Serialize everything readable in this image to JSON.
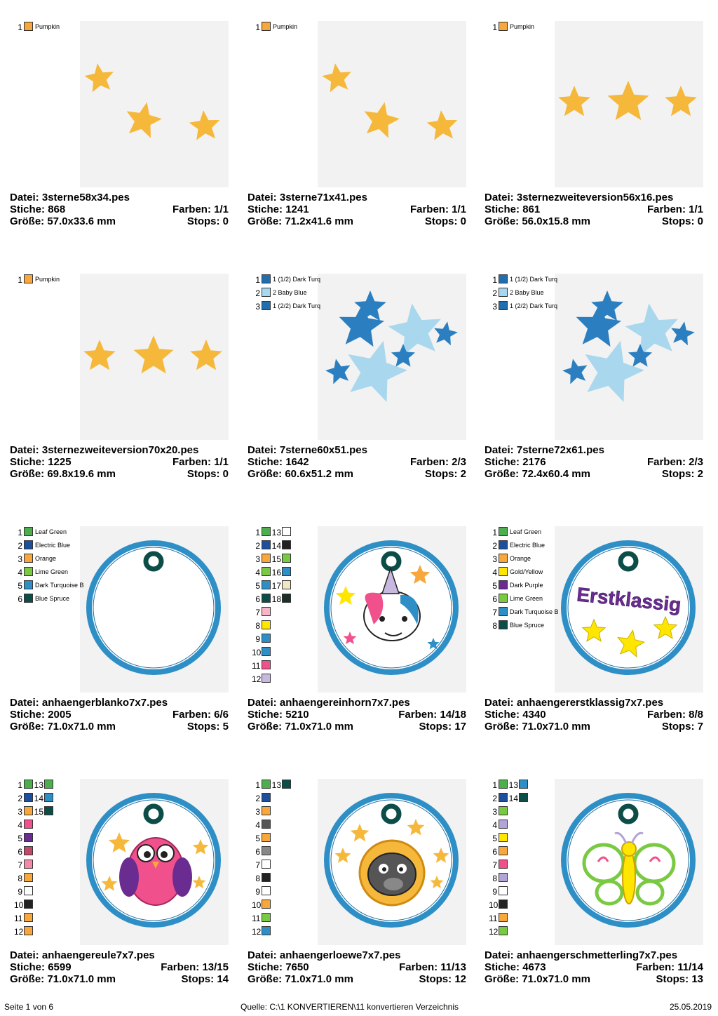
{
  "labels": {
    "file": "Datei:",
    "stitches": "Stiche:",
    "size": "Größe:",
    "colors": "Farben:",
    "stops": "Stops:"
  },
  "cards": [
    {
      "file": "3sterne58x34.pes",
      "stitches": "868",
      "colors": "1/1",
      "size": "57.0x33.6 mm",
      "stops": "0",
      "motif": "stars3a",
      "legend": [
        {
          "n": "1",
          "color": "#f7a73b",
          "name": "Pumpkin"
        }
      ]
    },
    {
      "file": "3sterne71x41.pes",
      "stitches": "1241",
      "colors": "1/1",
      "size": "71.2x41.6 mm",
      "stops": "0",
      "motif": "stars3a",
      "legend": [
        {
          "n": "1",
          "color": "#f7a73b",
          "name": "Pumpkin"
        }
      ]
    },
    {
      "file": "3sternezweiteversion56x16.pes",
      "stitches": "861",
      "colors": "1/1",
      "size": "56.0x15.8 mm",
      "stops": "0",
      "motif": "stars3b",
      "legend": [
        {
          "n": "1",
          "color": "#f7a73b",
          "name": "Pumpkin"
        }
      ]
    },
    {
      "file": "3sternezweiteversion70x20.pes",
      "stitches": "1225",
      "colors": "1/1",
      "size": "69.8x19.6 mm",
      "stops": "0",
      "motif": "stars3c",
      "legend": [
        {
          "n": "1",
          "color": "#f7a73b",
          "name": "Pumpkin"
        }
      ]
    },
    {
      "file": "7sterne60x51.pes",
      "stitches": "1642",
      "colors": "2/3",
      "size": "60.6x51.2 mm",
      "stops": "2",
      "motif": "stars7",
      "legend": [
        {
          "n": "1",
          "color": "#1f6fb0",
          "name": "1 (1/2) Dark Turq"
        },
        {
          "n": "2",
          "color": "#a9d8ee",
          "name": "2 Baby Blue"
        },
        {
          "n": "3",
          "color": "#1f6fb0",
          "name": "1 (2/2) Dark Turq"
        }
      ]
    },
    {
      "file": "7sterne72x61.pes",
      "stitches": "2176",
      "colors": "2/3",
      "size": "72.4x60.4 mm",
      "stops": "2",
      "motif": "stars7",
      "legend": [
        {
          "n": "1",
          "color": "#1f6fb0",
          "name": "1 (1/2) Dark Turq"
        },
        {
          "n": "2",
          "color": "#a9d8ee",
          "name": "2 Baby Blue"
        },
        {
          "n": "3",
          "color": "#1f6fb0",
          "name": "1 (2/2) Dark Turq"
        }
      ]
    },
    {
      "file": "anhaengerblanko7x7.pes",
      "stitches": "2005",
      "colors": "6/6",
      "size": "71.0x71.0 mm",
      "stops": "5",
      "motif": "tag-blank",
      "legend": [
        {
          "n": "1",
          "color": "#4cae4c",
          "name": "Leaf Green"
        },
        {
          "n": "2",
          "color": "#1e4f9c",
          "name": "Electric Blue"
        },
        {
          "n": "3",
          "color": "#f7a73b",
          "name": "Orange"
        },
        {
          "n": "4",
          "color": "#7ac943",
          "name": "Lime Green"
        },
        {
          "n": "5",
          "color": "#2d8fc6",
          "name": "Dark Turquoise B"
        },
        {
          "n": "6",
          "color": "#0d4d47",
          "name": "Blue Spruce"
        }
      ]
    },
    {
      "file": "anhaengereinhorn7x7.pes",
      "stitches": "5210",
      "colors": "14/18",
      "size": "71.0x71.0 mm",
      "stops": "17",
      "motif": "tag-unicorn",
      "legend": [
        {
          "n": "1",
          "color": "#4cae4c",
          "n2": "13",
          "color2": "#ffffff"
        },
        {
          "n": "2",
          "color": "#1e4f9c",
          "n2": "14",
          "color2": "#222222"
        },
        {
          "n": "3",
          "color": "#f7a73b",
          "n2": "15",
          "color2": "#7ac943"
        },
        {
          "n": "4",
          "color": "#7ac943",
          "n2": "16",
          "color2": "#2d8fc6"
        },
        {
          "n": "5",
          "color": "#2d8fc6",
          "n2": "17",
          "color2": "#f2e6c4"
        },
        {
          "n": "6",
          "color": "#0d4d47",
          "n2": "18",
          "color2": "#1a2e2a"
        },
        {
          "n": "7",
          "color": "#f7b6c8"
        },
        {
          "n": "8",
          "color": "#ffe600"
        },
        {
          "n": "9",
          "color": "#2d8fc6"
        },
        {
          "n": "10",
          "color": "#2d8fc6"
        },
        {
          "n": "11",
          "color": "#f0508c"
        },
        {
          "n": "12",
          "color": "#c7b8e0"
        }
      ]
    },
    {
      "file": "anhaengererstklassig7x7.pes",
      "stitches": "4340",
      "colors": "8/8",
      "size": "71.0x71.0 mm",
      "stops": "7",
      "motif": "tag-erstklassig",
      "tagtext": "Erstklassig",
      "legend": [
        {
          "n": "1",
          "color": "#4cae4c",
          "name": "Leaf Green"
        },
        {
          "n": "2",
          "color": "#1e4f9c",
          "name": "Electric Blue"
        },
        {
          "n": "3",
          "color": "#f7a73b",
          "name": "Orange"
        },
        {
          "n": "4",
          "color": "#ffe600",
          "name": "Gold/Yellow"
        },
        {
          "n": "5",
          "color": "#6a2c91",
          "name": "Dark Purple"
        },
        {
          "n": "6",
          "color": "#7ac943",
          "name": "Lime Green"
        },
        {
          "n": "7",
          "color": "#2d8fc6",
          "name": "Dark Turquoise B"
        },
        {
          "n": "8",
          "color": "#0d4d47",
          "name": "Blue Spruce"
        }
      ]
    },
    {
      "file": "anhaengereule7x7.pes",
      "stitches": "6599",
      "colors": "13/15",
      "size": "71.0x71.0 mm",
      "stops": "14",
      "motif": "tag-owl",
      "legend": [
        {
          "n": "1",
          "color": "#4cae4c",
          "n2": "13",
          "color2": "#4cae4c"
        },
        {
          "n": "2",
          "color": "#1e4f9c",
          "n2": "14",
          "color2": "#2d8fc6"
        },
        {
          "n": "3",
          "color": "#f7a73b",
          "n2": "15",
          "color2": "#0d4d47"
        },
        {
          "n": "4",
          "color": "#f0508c"
        },
        {
          "n": "5",
          "color": "#6a2c91"
        },
        {
          "n": "6",
          "color": "#c04a6a"
        },
        {
          "n": "7",
          "color": "#f08aa8"
        },
        {
          "n": "8",
          "color": "#f7a73b"
        },
        {
          "n": "9",
          "color": "#ffffff"
        },
        {
          "n": "10",
          "color": "#222222"
        },
        {
          "n": "11",
          "color": "#f7a73b"
        },
        {
          "n": "12",
          "color": "#f7a73b"
        }
      ]
    },
    {
      "file": "anhaengerloewe7x7.pes",
      "stitches": "7650",
      "colors": "11/13",
      "size": "71.0x71.0 mm",
      "stops": "12",
      "motif": "tag-lion",
      "legend": [
        {
          "n": "1",
          "color": "#4cae4c",
          "n2": "13",
          "color2": "#0d4d47"
        },
        {
          "n": "2",
          "color": "#1e4f9c"
        },
        {
          "n": "3",
          "color": "#f7a73b"
        },
        {
          "n": "4",
          "color": "#555555"
        },
        {
          "n": "5",
          "color": "#f7a73b"
        },
        {
          "n": "6",
          "color": "#888888"
        },
        {
          "n": "7",
          "color": "#ffffff"
        },
        {
          "n": "8",
          "color": "#222222"
        },
        {
          "n": "9",
          "color": "#ffffff"
        },
        {
          "n": "10",
          "color": "#f7a73b"
        },
        {
          "n": "11",
          "color": "#7ac943"
        },
        {
          "n": "12",
          "color": "#2d8fc6"
        }
      ]
    },
    {
      "file": "anhaengerschmetterling7x7.pes",
      "stitches": "4673",
      "colors": "11/14",
      "size": "71.0x71.0 mm",
      "stops": "13",
      "motif": "tag-butterfly",
      "legend": [
        {
          "n": "1",
          "color": "#4cae4c",
          "n2": "13",
          "color2": "#2d8fc6"
        },
        {
          "n": "2",
          "color": "#1e4f9c",
          "n2": "14",
          "color2": "#0d4d47"
        },
        {
          "n": "3",
          "color": "#7ac943"
        },
        {
          "n": "4",
          "color": "#b3a3d6"
        },
        {
          "n": "5",
          "color": "#ffe600"
        },
        {
          "n": "6",
          "color": "#f7a73b"
        },
        {
          "n": "7",
          "color": "#f0508c"
        },
        {
          "n": "8",
          "color": "#b3a3d6"
        },
        {
          "n": "9",
          "color": "#ffffff"
        },
        {
          "n": "10",
          "color": "#222222"
        },
        {
          "n": "11",
          "color": "#f7a73b"
        },
        {
          "n": "12",
          "color": "#7ac943"
        }
      ]
    }
  ],
  "footer": {
    "page": "Seite 1 von 6",
    "source": "Quelle: C:\\1 KONVERTIEREN\\11 konvertieren Verzeichnis",
    "date": "25.05.2019"
  }
}
